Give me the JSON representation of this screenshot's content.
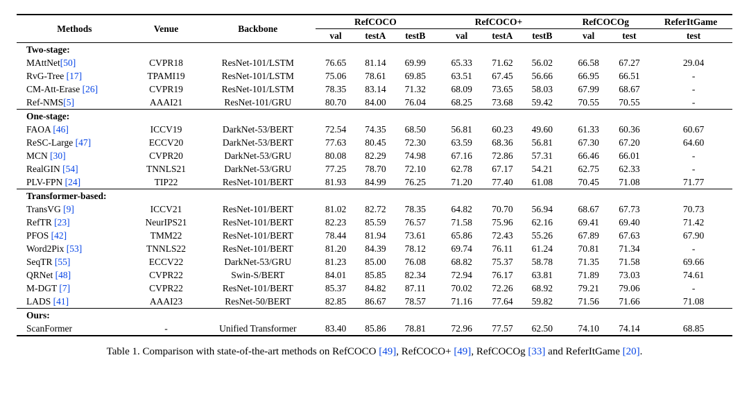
{
  "header": {
    "methods": "Methods",
    "venue": "Venue",
    "backbone": "Backbone",
    "groups": {
      "refcoco": "RefCOCO",
      "refcocop": "RefCOCO+",
      "refcocog": "RefCOCOg",
      "referit": "ReferItGame"
    },
    "sub": {
      "val": "val",
      "testA": "testA",
      "testB": "testB",
      "test": "test"
    }
  },
  "sections": [
    {
      "title": "Two-stage:",
      "rows": [
        {
          "method": "MAttNet",
          "cite": "[50]",
          "venue": "CVPR18",
          "backbone": "ResNet-101/LSTM",
          "c": [
            "76.65",
            "81.14",
            "69.99",
            "65.33",
            "71.62",
            "56.02",
            "66.58",
            "67.27",
            "29.04"
          ]
        },
        {
          "method": "RvG-Tree ",
          "cite": "[17]",
          "venue": "TPAMI19",
          "backbone": "ResNet-101/LSTM",
          "c": [
            "75.06",
            "78.61",
            "69.85",
            "63.51",
            "67.45",
            "56.66",
            "66.95",
            "66.51",
            "-"
          ]
        },
        {
          "method": "CM-Att-Erase ",
          "cite": "[26]",
          "venue": "CVPR19",
          "backbone": "ResNet-101/LSTM",
          "c": [
            "78.35",
            "83.14",
            "71.32",
            "68.09",
            "73.65",
            "58.03",
            "67.99",
            "68.67",
            "-"
          ]
        },
        {
          "method": "Ref-NMS",
          "cite": "[5]",
          "venue": "AAAI21",
          "backbone": "ResNet-101/GRU",
          "c": [
            "80.70",
            "84.00",
            "76.04",
            "68.25",
            "73.68",
            "59.42",
            "70.55",
            "70.55",
            "-"
          ]
        }
      ]
    },
    {
      "title": "One-stage:",
      "rows": [
        {
          "method": "FAOA ",
          "cite": "[46]",
          "venue": "ICCV19",
          "backbone": "DarkNet-53/BERT",
          "c": [
            "72.54",
            "74.35",
            "68.50",
            "56.81",
            "60.23",
            "49.60",
            "61.33",
            "60.36",
            "60.67"
          ]
        },
        {
          "method": "ReSC-Large ",
          "cite": "[47]",
          "venue": "ECCV20",
          "backbone": "DarkNet-53/BERT",
          "c": [
            "77.63",
            "80.45",
            "72.30",
            "63.59",
            "68.36",
            "56.81",
            "67.30",
            "67.20",
            "64.60"
          ]
        },
        {
          "method": "MCN ",
          "cite": "[30]",
          "venue": "CVPR20",
          "backbone": "DarkNet-53/GRU",
          "c": [
            "80.08",
            "82.29",
            "74.98",
            "67.16",
            "72.86",
            "57.31",
            "66.46",
            "66.01",
            "-"
          ]
        },
        {
          "method": "RealGIN ",
          "cite": "[54]",
          "venue": "TNNLS21",
          "backbone": "DarkNet-53/GRU",
          "c": [
            "77.25",
            "78.70",
            "72.10",
            "62.78",
            "67.17",
            "54.21",
            "62.75",
            "62.33",
            "-"
          ]
        },
        {
          "method": "PLV-FPN ",
          "cite": "[24]",
          "venue": "TIP22",
          "backbone": "ResNet-101/BERT",
          "c": [
            "81.93",
            "84.99",
            "76.25",
            "71.20",
            "77.40",
            "61.08",
            "70.45",
            "71.08",
            "71.77"
          ]
        }
      ]
    },
    {
      "title": "Transformer-based:",
      "rows": [
        {
          "method": "TransVG ",
          "cite": "[9]",
          "venue": "ICCV21",
          "backbone": "ResNet-101/BERT",
          "c": [
            "81.02",
            "82.72",
            "78.35",
            "64.82",
            "70.70",
            "56.94",
            "68.67",
            "67.73",
            "70.73"
          ]
        },
        {
          "method": "RefTR ",
          "cite": "[23]",
          "venue": "NeurIPS21",
          "backbone": "ResNet-101/BERT",
          "c": [
            "82.23",
            "85.59",
            "76.57",
            "71.58",
            "75.96",
            "62.16",
            "69.41",
            "69.40",
            "71.42"
          ]
        },
        {
          "method": "PFOS ",
          "cite": "[42]",
          "venue": "TMM22",
          "backbone": "ResNet-101/BERT",
          "c": [
            "78.44",
            "81.94",
            "73.61",
            "65.86",
            "72.43",
            "55.26",
            "67.89",
            "67.63",
            "67.90"
          ]
        },
        {
          "method": "Word2Pix ",
          "cite": "[53]",
          "venue": "TNNLS22",
          "backbone": "ResNet-101/BERT",
          "c": [
            "81.20",
            "84.39",
            "78.12",
            "69.74",
            "76.11",
            "61.24",
            "70.81",
            "71.34",
            "-"
          ]
        },
        {
          "method": "SeqTR ",
          "cite": "[55]",
          "venue": "ECCV22",
          "backbone": "DarkNet-53/GRU",
          "c": [
            "81.23",
            "85.00",
            "76.08",
            "68.82",
            "75.37",
            "58.78",
            "71.35",
            "71.58",
            "69.66"
          ]
        },
        {
          "method": "QRNet ",
          "cite": "[48]",
          "venue": "CVPR22",
          "backbone": "Swin-S/BERT",
          "c": [
            "84.01",
            "85.85",
            "82.34",
            "72.94",
            "76.17",
            "63.81",
            "71.89",
            "73.03",
            "74.61"
          ]
        },
        {
          "method": "M-DGT ",
          "cite": "[7]",
          "venue": "CVPR22",
          "backbone": "ResNet-101/BERT",
          "c": [
            "85.37",
            "84.82",
            "87.11",
            "70.02",
            "72.26",
            "68.92",
            "79.21",
            "79.06",
            "-"
          ]
        },
        {
          "method": "LADS ",
          "cite": "[41]",
          "venue": "AAAI23",
          "backbone": "ResNet-50/BERT",
          "c": [
            "82.85",
            "86.67",
            "78.57",
            "71.16",
            "77.64",
            "59.82",
            "71.56",
            "71.66",
            "71.08"
          ]
        }
      ]
    },
    {
      "title": "Ours:",
      "rows": [
        {
          "method": "ScanFormer",
          "cite": "",
          "venue": "-",
          "backbone": "Unified Transformer",
          "c": [
            "83.40",
            "85.86",
            "78.81",
            "72.96",
            "77.57",
            "62.50",
            "74.10",
            "74.14",
            "68.85"
          ]
        }
      ]
    }
  ],
  "caption": {
    "prefix": "Table 1. Comparison with state-of-the-art methods on RefCOCO ",
    "c1": "[49]",
    "mid1": ", RefCOCO+ ",
    "c2": "[49]",
    "mid2": ", RefCOCOg ",
    "c3": "[33]",
    "mid3": " and ReferItGame ",
    "c4": "[20]",
    "suffix": "."
  },
  "style": {
    "cite_color": "#0645e6",
    "font_family": "Times New Roman",
    "font_size_pt": 10,
    "rule_color": "#000000",
    "background": "#ffffff"
  }
}
